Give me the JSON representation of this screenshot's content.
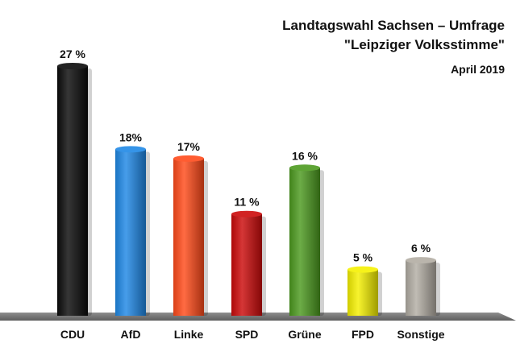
{
  "chart_data": {
    "type": "bar",
    "title": "Landtagswahl Sachsen – Umfrage",
    "title_line2": "\"Leipziger Volksstimme\"",
    "subtitle": "April 2019",
    "categories": [
      "CDU",
      "AfD",
      "Linke",
      "SPD",
      "Grüne",
      "FPD",
      "Sonstige"
    ],
    "values": [
      27,
      18,
      17,
      11,
      16,
      5,
      6
    ],
    "value_labels": [
      "27 %",
      "18%",
      "17%",
      "11 %",
      "16 %",
      "5 %",
      "6 %"
    ],
    "colors": [
      "#0a0a0a",
      "#1e88e5",
      "#ff4a1a",
      "#cc0a0a",
      "#4c9a1e",
      "#f5f000",
      "#b2ada3"
    ],
    "ylim": [
      0,
      27
    ],
    "grid": false,
    "legend": "none"
  }
}
